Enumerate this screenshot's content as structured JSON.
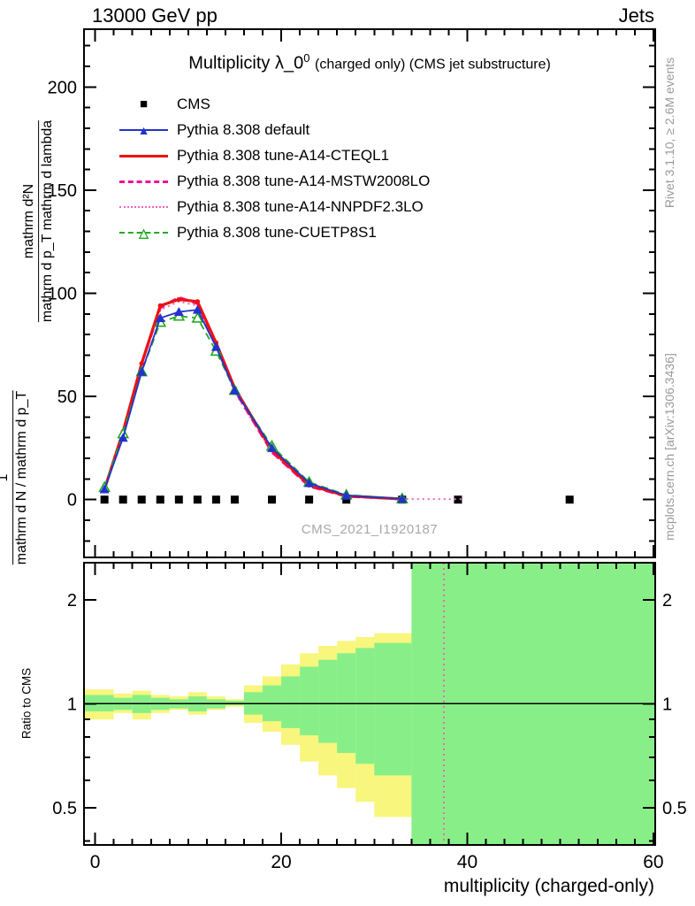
{
  "header": {
    "left": "13000 GeV pp",
    "right": "Jets"
  },
  "title": {
    "main": "Multiplicity λ_0",
    "sup": "0",
    "rest": "(charged only) (CMS jet substructure)"
  },
  "watermark": "CMS_2021_I1920187",
  "side_notes": {
    "right_top": "Rivet 3.1.10, ≥ 2.6M events",
    "right_bottom": "mcplots.cern.ch [arXiv:1306.3436]"
  },
  "ylabel": {
    "inner_num": "mathrm d²N",
    "inner_den": "mathrm d p_T mathrm d lambda",
    "outer_num": "1",
    "outer_den": "mathrm d N / mathrm d p_T"
  },
  "ratio_ylabel": "Ratio to CMS",
  "xlabel": "multiplicity (charged-only)",
  "colors": {
    "band_yellow": "#f8f67c",
    "band_green": "#88ef88",
    "frame": "#000000",
    "note_gray": "#999999"
  },
  "chart_data": {
    "type": "line",
    "title": "Multiplicity λ_0^0 (charged only) (CMS jet substructure)",
    "xlabel": "multiplicity (charged-only)",
    "ylabel": "1 / (mathrm d N / mathrm d p_T) · mathrm d²N / (mathrm d p_T mathrm d lambda)",
    "ratio_label": "Ratio to CMS",
    "xlim": [
      -1.2,
      60.2
    ],
    "ylim": [
      -28,
      228
    ],
    "xticks": [
      0,
      20,
      40,
      60
    ],
    "xminor_step": 2,
    "yticks": [
      0,
      50,
      100,
      150,
      200
    ],
    "yminor_step": 10,
    "legend_position": "top-left",
    "grid": false,
    "series": [
      {
        "name": "CMS",
        "color": "#000000",
        "line": "none",
        "width": 0,
        "marker": "square",
        "x": [
          1,
          3,
          5,
          7,
          9,
          11,
          13,
          15,
          19,
          23,
          27,
          33,
          39,
          51
        ],
        "y": [
          0,
          0,
          0,
          0,
          0,
          0,
          0,
          0,
          0,
          0,
          0,
          0,
          0,
          0
        ]
      },
      {
        "name": "Pythia 8.308 default",
        "color": "#2233cc",
        "line": "solid",
        "width": 1.8,
        "marker": "triangle",
        "x": [
          1,
          3,
          5,
          7,
          9,
          11,
          13,
          15,
          19,
          23,
          27,
          33
        ],
        "y": [
          5,
          30,
          62,
          88,
          91,
          92,
          74,
          53,
          25,
          8,
          2,
          0.4
        ]
      },
      {
        "name": "Pythia 8.308 tune-A14-CTEQL1",
        "color": "#ee1111",
        "line": "solid",
        "width": 3.2,
        "marker": "dot",
        "x": [
          1,
          3,
          5,
          7,
          9,
          11,
          13,
          15,
          19,
          23,
          27,
          33
        ],
        "y": [
          5,
          33,
          66,
          94,
          97,
          96,
          76,
          54,
          24,
          7,
          1.8,
          0.3
        ]
      },
      {
        "name": "Pythia 8.308 tune-A14-MSTW2008LO",
        "color": "#ee1199",
        "line": "dashed",
        "dash": "10,5",
        "width": 3,
        "marker": "none",
        "x": [
          1,
          3,
          5,
          7,
          9,
          11,
          13,
          15,
          19,
          23,
          27,
          33
        ],
        "y": [
          5,
          33,
          66,
          93,
          98,
          95,
          75,
          53,
          23,
          6.5,
          1.6,
          0.3
        ]
      },
      {
        "name": "Pythia 8.308 tune-A14-NNPDF2.3LO",
        "color": "#ee66bb",
        "line": "dotted",
        "dash": "2,4",
        "width": 2,
        "marker": "none",
        "x": [
          1,
          3,
          5,
          7,
          9,
          11,
          13,
          15,
          19,
          23,
          27,
          33,
          36,
          39.5
        ],
        "y": [
          5,
          32,
          65,
          92,
          96,
          94,
          74,
          52,
          23,
          6.6,
          1.7,
          0.3,
          0.25,
          0.2
        ]
      },
      {
        "name": "Pythia 8.308 tune-CUETP8S1",
        "color": "#22aa22",
        "line": "dashed",
        "dash": "8,5",
        "width": 1.8,
        "marker": "triangle-open",
        "x": [
          1,
          3,
          5,
          7,
          9,
          11,
          13,
          15,
          19,
          23,
          27,
          33
        ],
        "y": [
          6,
          32,
          62,
          86,
          89,
          88,
          72,
          53,
          26,
          8.5,
          2.3,
          0.5
        ]
      }
    ],
    "ratio": {
      "scale": "log",
      "ylim": [
        0.39,
        2.56
      ],
      "yticks": [
        0.5,
        1,
        2
      ],
      "yminor": [
        0.4,
        0.6,
        0.7,
        0.8,
        0.9
      ],
      "reference_line_y": 1,
      "vline": {
        "x": 37.5,
        "color": "#ee66bb",
        "dash": "2,4",
        "width": 2
      },
      "full_band": {
        "x0": 34,
        "x1": 60.2
      },
      "bands": [
        {
          "x0": -1.2,
          "x1": 2,
          "yellow": [
            0.9,
            1.1
          ],
          "green": [
            0.95,
            1.06
          ]
        },
        {
          "x0": 2,
          "x1": 4,
          "yellow": [
            0.94,
            1.07
          ],
          "green": [
            0.96,
            1.04
          ]
        },
        {
          "x0": 4,
          "x1": 6,
          "yellow": [
            0.9,
            1.09
          ],
          "green": [
            0.94,
            1.06
          ]
        },
        {
          "x0": 6,
          "x1": 8,
          "yellow": [
            0.94,
            1.06
          ],
          "green": [
            0.96,
            1.04
          ]
        },
        {
          "x0": 8,
          "x1": 10,
          "yellow": [
            0.96,
            1.05
          ],
          "green": [
            0.97,
            1.03
          ]
        },
        {
          "x0": 10,
          "x1": 12,
          "yellow": [
            0.93,
            1.08
          ],
          "green": [
            0.95,
            1.05
          ]
        },
        {
          "x0": 12,
          "x1": 14,
          "yellow": [
            0.96,
            1.05
          ],
          "green": [
            0.97,
            1.03
          ]
        },
        {
          "x0": 14,
          "x1": 16,
          "yellow": [
            0.98,
            1.03
          ],
          "green": [
            0.99,
            1.02
          ]
        },
        {
          "x0": 16,
          "x1": 18,
          "yellow": [
            0.88,
            1.13
          ],
          "green": [
            0.93,
            1.08
          ]
        },
        {
          "x0": 18,
          "x1": 20,
          "yellow": [
            0.83,
            1.2
          ],
          "green": [
            0.89,
            1.13
          ]
        },
        {
          "x0": 20,
          "x1": 22,
          "yellow": [
            0.76,
            1.3
          ],
          "green": [
            0.85,
            1.2
          ]
        },
        {
          "x0": 22,
          "x1": 24,
          "yellow": [
            0.68,
            1.4
          ],
          "green": [
            0.81,
            1.28
          ]
        },
        {
          "x0": 24,
          "x1": 26,
          "yellow": [
            0.62,
            1.47
          ],
          "green": [
            0.77,
            1.34
          ]
        },
        {
          "x0": 26,
          "x1": 28,
          "yellow": [
            0.57,
            1.52
          ],
          "green": [
            0.72,
            1.4
          ]
        },
        {
          "x0": 28,
          "x1": 30,
          "yellow": [
            0.52,
            1.56
          ],
          "green": [
            0.67,
            1.45
          ]
        },
        {
          "x0": 30,
          "x1": 34,
          "yellow": [
            0.47,
            1.6
          ],
          "green": [
            0.62,
            1.5
          ]
        }
      ]
    }
  }
}
